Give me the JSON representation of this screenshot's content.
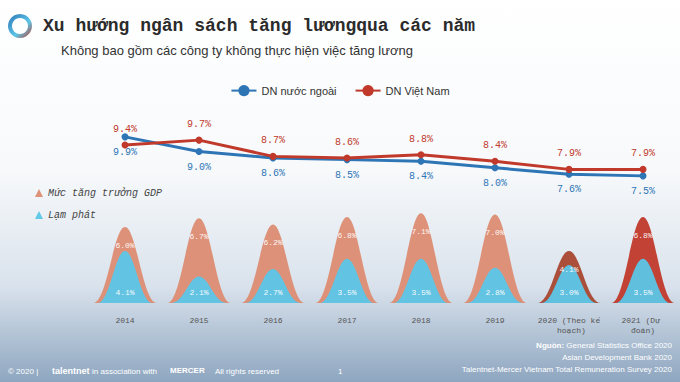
{
  "chart_data": [
    {
      "type": "line",
      "title": "Xu hướng ngân sách tăng lươngqua các năm",
      "subtitle": "Không bao gồm các công ty không thực hiện việc tăng lương",
      "categories": [
        "2014",
        "2015",
        "2016",
        "2017",
        "2018",
        "2019",
        "2020 (Theo kế hoạch)",
        "2021 (Dự đoán)"
      ],
      "series": [
        {
          "name": "DN nước ngoài",
          "color": "#2e75b6",
          "values": [
            9.9,
            9.0,
            8.6,
            8.5,
            8.4,
            8.0,
            7.6,
            7.5
          ],
          "value_labels": [
            "9.9%",
            "9.0%",
            "8.6%",
            "8.5%",
            "8.4%",
            "8.0%",
            "7.6%",
            "7.5%"
          ]
        },
        {
          "name": "DN Việt Nam",
          "color": "#c0392b",
          "values": [
            9.4,
            9.7,
            8.7,
            8.6,
            8.8,
            8.4,
            7.9,
            7.9
          ],
          "value_labels": [
            "9.4%",
            "9.7%",
            "8.7%",
            "8.6%",
            "8.8%",
            "8.4%",
            "7.9%",
            "7.9%"
          ]
        }
      ],
      "ylim": [
        7,
        10.2
      ],
      "grid": false,
      "tick_labels": false,
      "legend": "top",
      "data_labels": true,
      "marker": "circle"
    },
    {
      "type": "bar",
      "marker": "bell",
      "categories": [
        "2014",
        "2015",
        "2016",
        "2017",
        "2018",
        "2019",
        "2020 (Theo kế hoạch)",
        "2021 (Dự đoán)"
      ],
      "series": [
        {
          "name": "Mức tăng trưởng GDP",
          "colors": [
            "#dd8c72",
            "#dd8c72",
            "#dd8c72",
            "#dd8c72",
            "#dd8c72",
            "#dd8c72",
            "#a8472f",
            "#c0392b"
          ],
          "values": [
            6.0,
            6.7,
            6.2,
            6.8,
            7.1,
            7.0,
            4.1,
            6.8
          ],
          "value_labels": [
            "6.0%",
            "6.7%",
            "6.2%",
            "6.8%",
            "7.1%",
            "7.0%",
            "4.1%",
            "6.8%"
          ]
        },
        {
          "name": "Lạm phát",
          "color": "#5cc6e8",
          "values": [
            4.1,
            2.1,
            2.7,
            3.5,
            3.5,
            2.8,
            3.0,
            3.5
          ],
          "value_labels": [
            "4.1%",
            "2.1%",
            "2.7%",
            "3.5%",
            "3.5%",
            "2.8%",
            "3.0%",
            "3.5%"
          ]
        }
      ],
      "ylim": [
        0,
        7.2
      ],
      "grid": false,
      "tick_labels": "x",
      "legend": "left",
      "data_labels": true
    }
  ],
  "footer": {
    "copyright": "© 2020 |",
    "brand": "talentnet",
    "association": "in association with",
    "partner": "MERCER",
    "rights": "All rights reserved",
    "page": "1"
  },
  "sources": {
    "heading": "Nguồn:",
    "lines": [
      "General Statistics Office 2020",
      "Asian Development Bank 2020",
      "Talentnet-Mercer Vietnam Total Remuneration Survey 2020"
    ]
  }
}
